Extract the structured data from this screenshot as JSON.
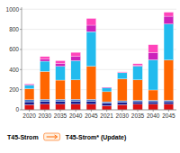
{
  "chart_data": {
    "type": "bar",
    "stacked": true,
    "grid": true,
    "categories": [
      "2020",
      "2030",
      "2035",
      "2040",
      "2045",
      "2021",
      "2030",
      "2035",
      "2040",
      "2045"
    ],
    "series": [
      {
        "color": "#dd1111",
        "values": [
          50,
          55,
          55,
          55,
          55,
          40,
          50,
          55,
          55,
          55
        ]
      },
      {
        "color": "#1a1a8c",
        "values": [
          30,
          30,
          30,
          30,
          30,
          25,
          25,
          25,
          25,
          25
        ]
      },
      {
        "color": "#4477cc",
        "values": [
          20,
          20,
          20,
          20,
          20,
          15,
          15,
          15,
          15,
          15
        ]
      },
      {
        "color": "#ff6600",
        "values": [
          109,
          276,
          190,
          192,
          328,
          100,
          217,
          202,
          102,
          400
        ]
      },
      {
        "color": "#22bbee",
        "values": [
          37,
          102,
          137,
          192,
          344,
          37,
          61,
          137,
          300,
          358
        ]
      },
      {
        "color": "#cc22bb",
        "values": [
          8,
          20,
          28,
          42,
          64,
          8,
          3,
          7,
          71,
          77
        ]
      },
      {
        "color": "#ff44bb",
        "values": [
          5,
          26,
          28,
          40,
          67,
          5,
          6,
          17,
          79,
          40
        ]
      }
    ],
    "annotations": [
      "T45-Strom",
      "T45-Strom* (Update)"
    ],
    "ylim": [
      0,
      1020
    ],
    "yticks": [
      0,
      200,
      400,
      600,
      800,
      1000
    ]
  }
}
